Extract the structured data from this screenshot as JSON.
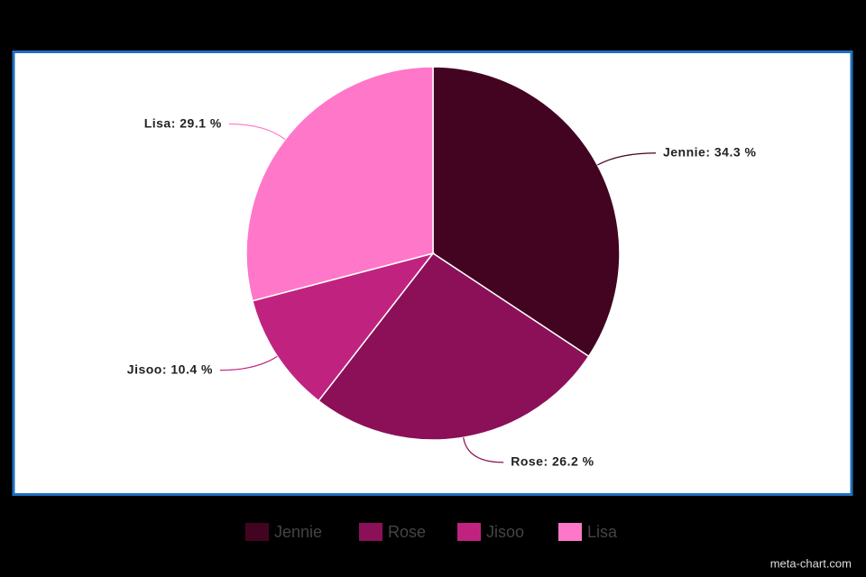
{
  "chart_data": {
    "type": "pie",
    "categories": [
      "Jennie",
      "Rose",
      "Jisoo",
      "Lisa"
    ],
    "values": [
      34.3,
      26.2,
      10.4,
      29.1
    ],
    "value_labels": [
      "Jennie: 34.3 %",
      "Rose: 26.2 %",
      "Jisoo: 10.4 %",
      "Lisa: 29.1 %"
    ],
    "colors": [
      "#420420",
      "#8b1058",
      "#c0237f",
      "#ff77c8"
    ],
    "legend": "bottom",
    "source": "meta-chart.com"
  }
}
